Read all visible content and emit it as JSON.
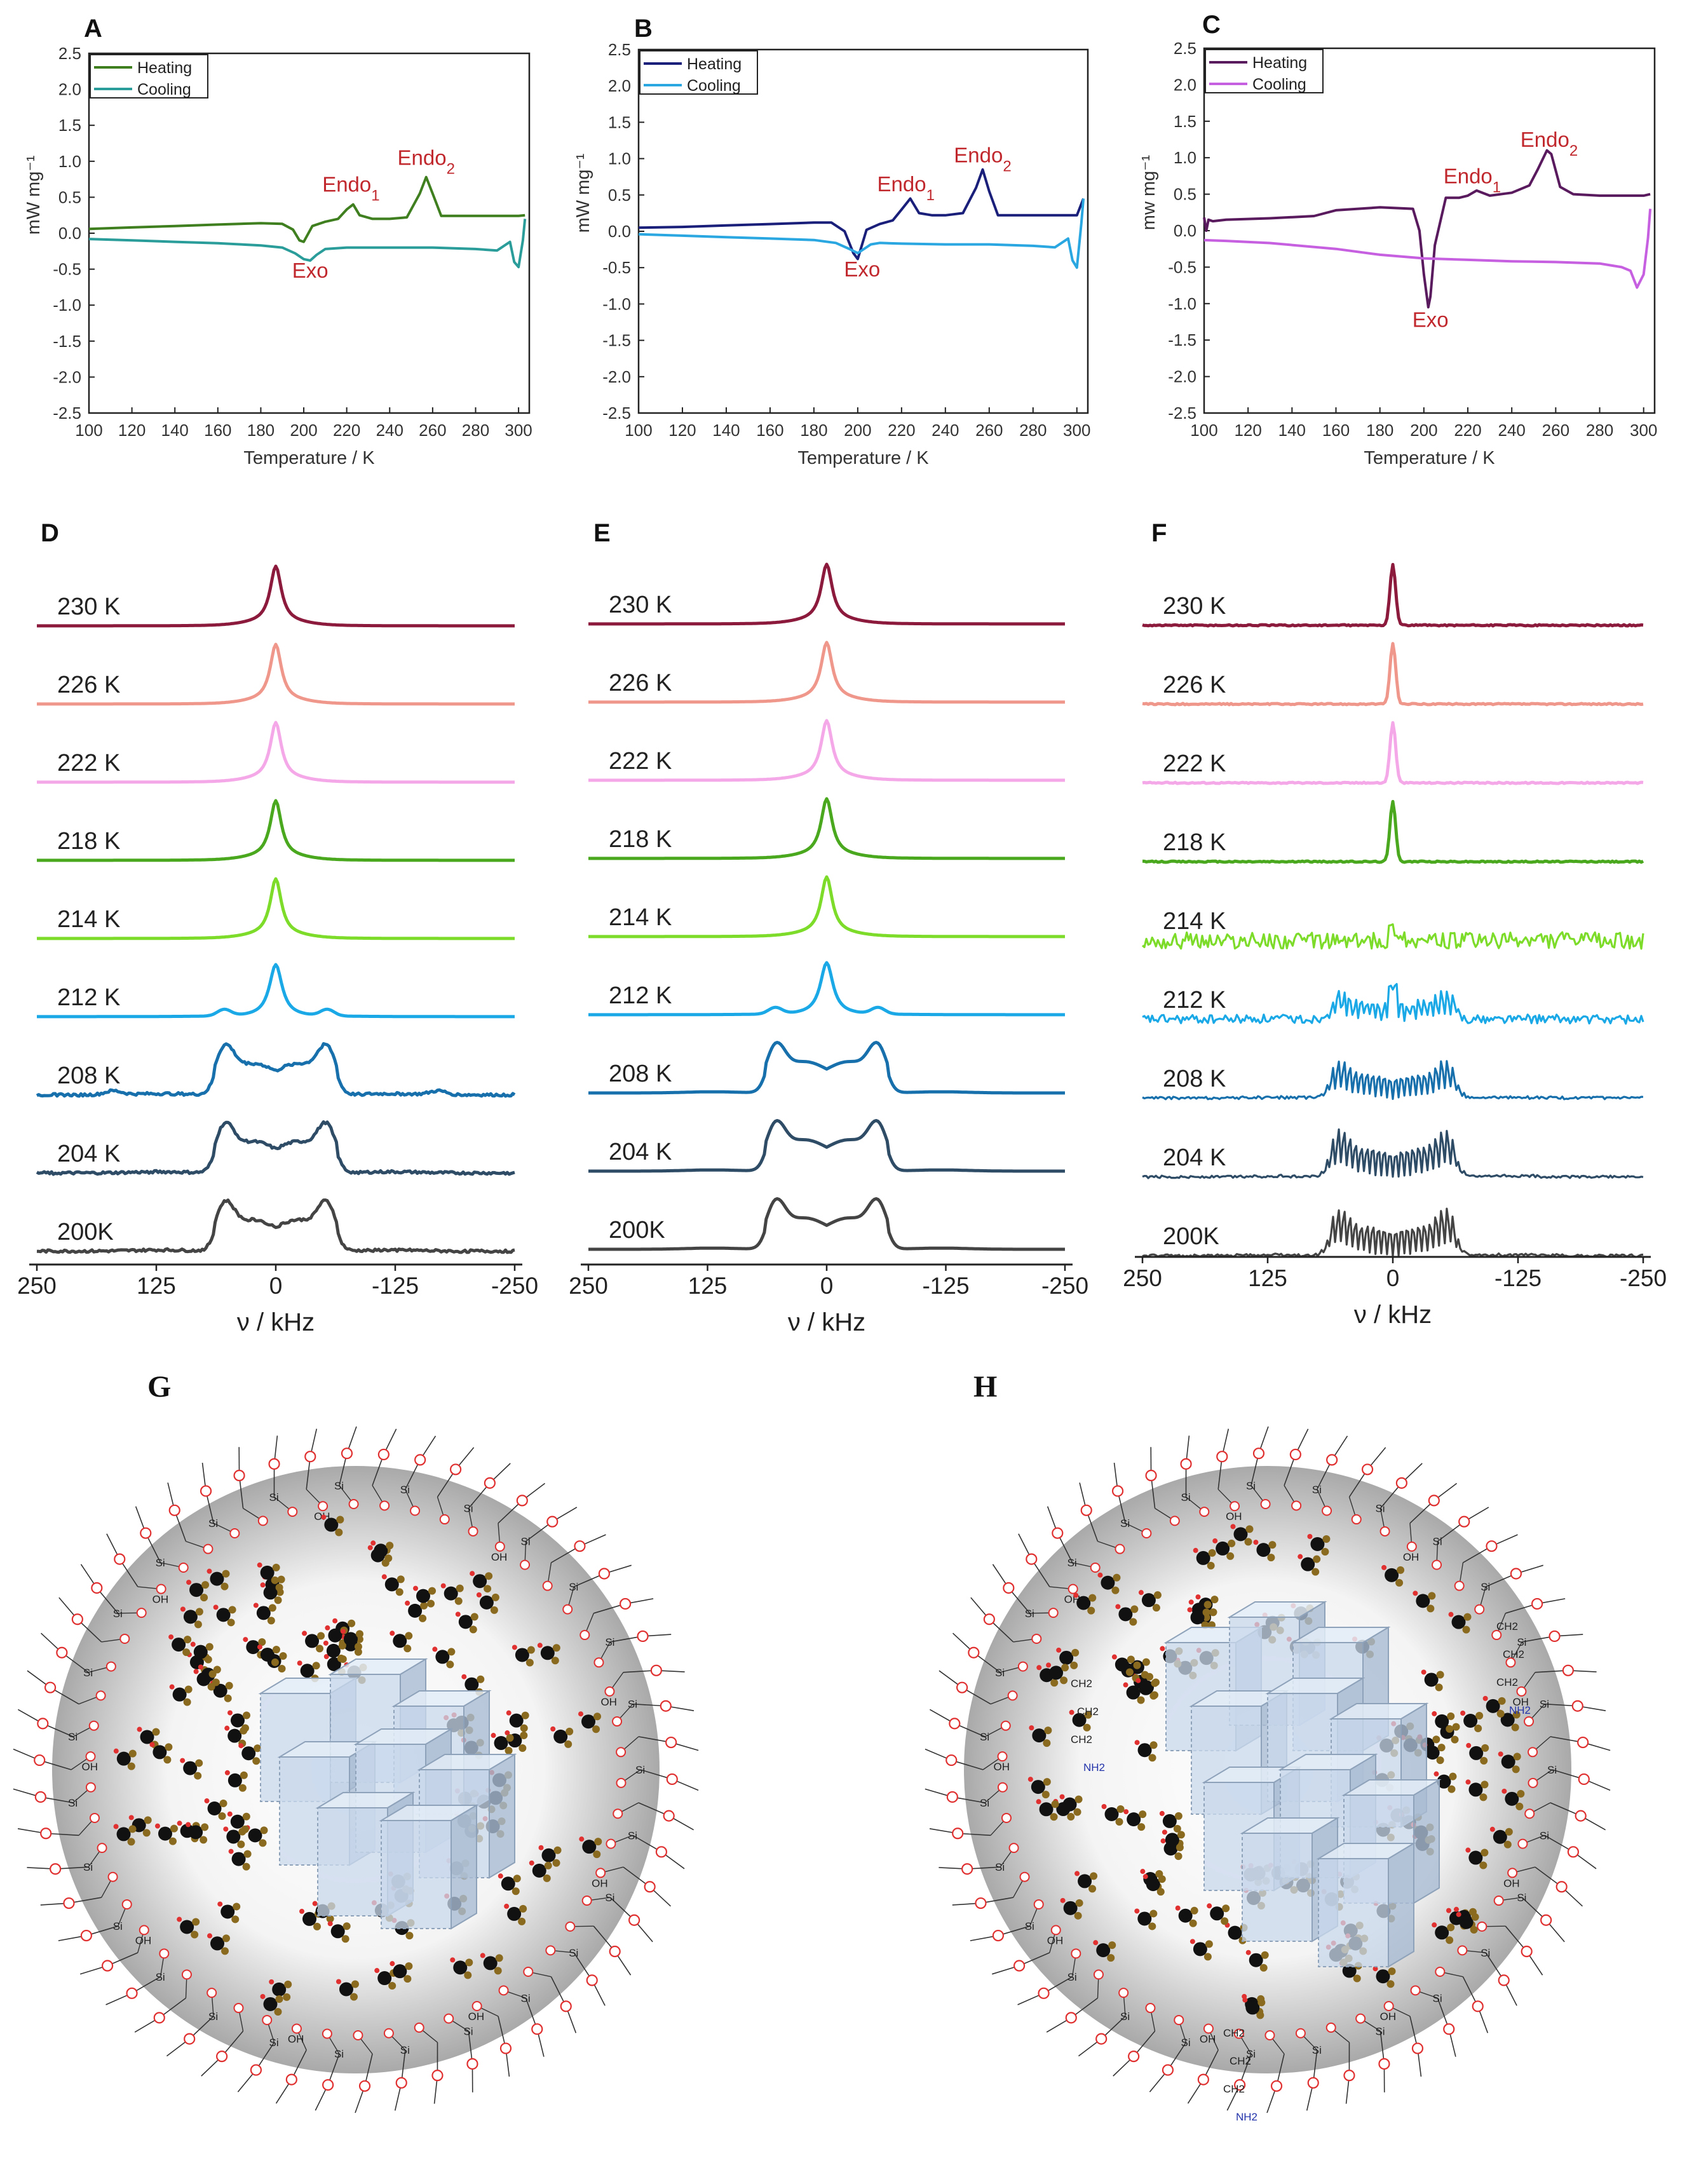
{
  "figure_panels": {
    "A": "A",
    "B": "B",
    "C": "C",
    "D": "D",
    "E": "E",
    "F": "F",
    "G": "G",
    "H": "H"
  },
  "chart_data": [
    {
      "panel": "A",
      "type": "line",
      "xlabel": "Temperature / K",
      "ylabel": "mW mg⁻¹",
      "xlim": [
        100,
        305
      ],
      "ylim": [
        -2.5,
        2.5
      ],
      "xticks": [
        "100",
        "120",
        "140",
        "160",
        "180",
        "200",
        "220",
        "240",
        "260",
        "280",
        "300"
      ],
      "yticks": [
        "-2.5",
        "-2.0",
        "-1.5",
        "-1.0",
        "-0.5",
        "0.0",
        "0.5",
        "1.0",
        "1.5",
        "2.0",
        "2.5"
      ],
      "series": [
        {
          "name": "Heating",
          "color": "#3f7f1f",
          "x": [
            100,
            120,
            140,
            160,
            180,
            190,
            195,
            198,
            200,
            204,
            210,
            216,
            220,
            223,
            226,
            232,
            240,
            248,
            254,
            257,
            260,
            264,
            270,
            280,
            290,
            300,
            303
          ],
          "y": [
            0.06,
            0.08,
            0.1,
            0.12,
            0.14,
            0.13,
            0.05,
            -0.1,
            -0.12,
            0.1,
            0.16,
            0.2,
            0.33,
            0.4,
            0.25,
            0.2,
            0.2,
            0.22,
            0.55,
            0.78,
            0.55,
            0.24,
            0.24,
            0.24,
            0.24,
            0.24,
            0.25
          ]
        },
        {
          "name": "Cooling",
          "color": "#2a9d9a",
          "x": [
            100,
            120,
            140,
            160,
            180,
            190,
            196,
            200,
            203,
            206,
            210,
            220,
            240,
            260,
            280,
            290,
            296,
            298,
            300,
            302,
            303
          ],
          "y": [
            -0.08,
            -0.1,
            -0.12,
            -0.14,
            -0.17,
            -0.2,
            -0.28,
            -0.36,
            -0.38,
            -0.3,
            -0.22,
            -0.2,
            -0.2,
            -0.2,
            -0.22,
            -0.24,
            -0.12,
            -0.4,
            -0.47,
            -0.1,
            0.2
          ]
        }
      ],
      "annotations": [
        {
          "text": "Exo",
          "x": 203,
          "y": -0.62
        },
        {
          "text": "Endo",
          "sub": "1",
          "x": 222,
          "y": 0.58
        },
        {
          "text": "Endo",
          "sub": "2",
          "x": 257,
          "y": 0.95
        }
      ]
    },
    {
      "panel": "B",
      "type": "line",
      "xlabel": "Temperature / K",
      "ylabel": "mW mg⁻¹",
      "xlim": [
        100,
        305
      ],
      "ylim": [
        -2.5,
        2.5
      ],
      "xticks": [
        "100",
        "120",
        "140",
        "160",
        "180",
        "200",
        "220",
        "240",
        "260",
        "280",
        "300"
      ],
      "yticks": [
        "-2.5",
        "-2.0",
        "-1.5",
        "-1.0",
        "-0.5",
        "0.0",
        "0.5",
        "1.0",
        "1.5",
        "2.0",
        "2.5"
      ],
      "series": [
        {
          "name": "Heating",
          "color": "#1a1f7a",
          "x": [
            100,
            120,
            140,
            160,
            180,
            188,
            194,
            198,
            200,
            204,
            210,
            216,
            220,
            224,
            228,
            234,
            240,
            248,
            254,
            257,
            260,
            264,
            270,
            280,
            290,
            300,
            303
          ],
          "y": [
            0.05,
            0.06,
            0.08,
            0.1,
            0.12,
            0.12,
            0.0,
            -0.3,
            -0.38,
            0.02,
            0.1,
            0.15,
            0.3,
            0.45,
            0.25,
            0.22,
            0.22,
            0.25,
            0.6,
            0.85,
            0.55,
            0.22,
            0.22,
            0.22,
            0.22,
            0.22,
            0.45
          ]
        },
        {
          "name": "Cooling",
          "color": "#2aa7e0",
          "x": [
            100,
            120,
            140,
            160,
            180,
            190,
            196,
            200,
            203,
            206,
            210,
            220,
            240,
            260,
            280,
            290,
            296,
            298,
            300,
            302,
            303
          ],
          "y": [
            -0.04,
            -0.06,
            -0.08,
            -0.1,
            -0.12,
            -0.16,
            -0.24,
            -0.3,
            -0.24,
            -0.18,
            -0.16,
            -0.17,
            -0.18,
            -0.18,
            -0.2,
            -0.22,
            -0.1,
            -0.4,
            -0.5,
            0.1,
            0.45
          ]
        }
      ],
      "annotations": [
        {
          "text": "Exo",
          "x": 202,
          "y": -0.62
        },
        {
          "text": "Endo",
          "sub": "1",
          "x": 222,
          "y": 0.55
        },
        {
          "text": "Endo",
          "sub": "2",
          "x": 257,
          "y": 0.95
        }
      ]
    },
    {
      "panel": "C",
      "type": "line",
      "xlabel": "Temperature / K",
      "ylabel": "mw mg⁻¹",
      "xlim": [
        100,
        305
      ],
      "ylim": [
        -2.5,
        2.5
      ],
      "xticks": [
        "100",
        "120",
        "140",
        "160",
        "180",
        "200",
        "220",
        "240",
        "260",
        "280",
        "300"
      ],
      "yticks": [
        "-2.5",
        "-2.0",
        "-1.5",
        "-1.0",
        "-0.5",
        "0.0",
        "0.5",
        "1.0",
        "1.5",
        "2.0",
        "2.5"
      ],
      "series": [
        {
          "name": "Heating",
          "color": "#5a1a5e",
          "x": [
            100,
            101,
            102,
            104,
            110,
            130,
            150,
            160,
            180,
            195,
            198,
            200,
            202,
            203,
            205,
            210,
            216,
            220,
            224,
            230,
            240,
            248,
            252,
            256,
            258,
            262,
            268,
            280,
            300,
            303
          ],
          "y": [
            0.18,
            0.0,
            0.15,
            0.13,
            0.15,
            0.17,
            0.2,
            0.28,
            0.32,
            0.3,
            0.0,
            -0.6,
            -1.05,
            -0.9,
            -0.2,
            0.45,
            0.45,
            0.48,
            0.55,
            0.48,
            0.52,
            0.62,
            0.85,
            1.1,
            1.05,
            0.6,
            0.5,
            0.48,
            0.48,
            0.5
          ]
        },
        {
          "name": "Cooling",
          "color": "#c65fe0",
          "x": [
            100,
            110,
            130,
            160,
            180,
            200,
            220,
            240,
            260,
            280,
            290,
            294,
            297,
            300,
            302,
            303
          ],
          "y": [
            -0.13,
            -0.14,
            -0.17,
            -0.25,
            -0.33,
            -0.38,
            -0.4,
            -0.42,
            -0.43,
            -0.45,
            -0.5,
            -0.55,
            -0.78,
            -0.6,
            -0.1,
            0.3
          ]
        }
      ],
      "annotations": [
        {
          "text": "Exo",
          "x": 203,
          "y": -1.32
        },
        {
          "text": "Endo",
          "sub": "1",
          "x": 222,
          "y": 0.65
        },
        {
          "text": "Endo",
          "sub": "2",
          "x": 257,
          "y": 1.15
        }
      ]
    },
    {
      "panel": "D",
      "type": "line",
      "xlabel": "ν / kHz",
      "xlim": [
        250,
        -250
      ],
      "xticks": [
        "250",
        "125",
        "0",
        "-125",
        "-250"
      ],
      "series": [
        {
          "name": "230 K",
          "color": "#8b1a3c"
        },
        {
          "name": "226 K",
          "color": "#f0978c"
        },
        {
          "name": "222 K",
          "color": "#f5a8e8"
        },
        {
          "name": "218 K",
          "color": "#4aa81f"
        },
        {
          "name": "214 K",
          "color": "#7ddb2a"
        },
        {
          "name": "212 K",
          "color": "#1aa9e6"
        },
        {
          "name": "208 K",
          "color": "#1770ab"
        },
        {
          "name": "204 K",
          "color": "#2f4c66"
        },
        {
          "name": "200K",
          "color": "#444444"
        }
      ]
    },
    {
      "panel": "E",
      "type": "line",
      "xlabel": "ν / kHz",
      "xlim": [
        250,
        -250
      ],
      "xticks": [
        "250",
        "125",
        "0",
        "-125",
        "-250"
      ],
      "series": [
        {
          "name": "230 K",
          "color": "#8b1a3c"
        },
        {
          "name": "226 K",
          "color": "#f0978c"
        },
        {
          "name": "222 K",
          "color": "#f5a8e8"
        },
        {
          "name": "218 K",
          "color": "#4aa81f"
        },
        {
          "name": "214 K",
          "color": "#7ddb2a"
        },
        {
          "name": "212 K",
          "color": "#1aa9e6"
        },
        {
          "name": "208 K",
          "color": "#1770ab"
        },
        {
          "name": "204 K",
          "color": "#2f4c66"
        },
        {
          "name": "200K",
          "color": "#444444"
        }
      ]
    },
    {
      "panel": "F",
      "type": "line",
      "xlabel": "ν / kHz",
      "xlim": [
        250,
        -250
      ],
      "xticks": [
        "250",
        "125",
        "0",
        "-125",
        "-250"
      ],
      "series": [
        {
          "name": "230 K",
          "color": "#8b1a3c"
        },
        {
          "name": "226 K",
          "color": "#f0978c"
        },
        {
          "name": "222 K",
          "color": "#f5a8e8"
        },
        {
          "name": "218 K",
          "color": "#4aa81f"
        },
        {
          "name": "214 K",
          "color": "#7ddb2a"
        },
        {
          "name": "212 K",
          "color": "#1aa9e6"
        },
        {
          "name": "208 K",
          "color": "#1770ab"
        },
        {
          "name": "204 K",
          "color": "#2f4c66"
        },
        {
          "name": "200K",
          "color": "#444444"
        }
      ]
    }
  ],
  "schematics": {
    "atoms": {
      "silicon": "Si",
      "oxygen": "O",
      "hydroxyl": "OH",
      "amine": "NH2",
      "methylene": "CH2"
    }
  }
}
